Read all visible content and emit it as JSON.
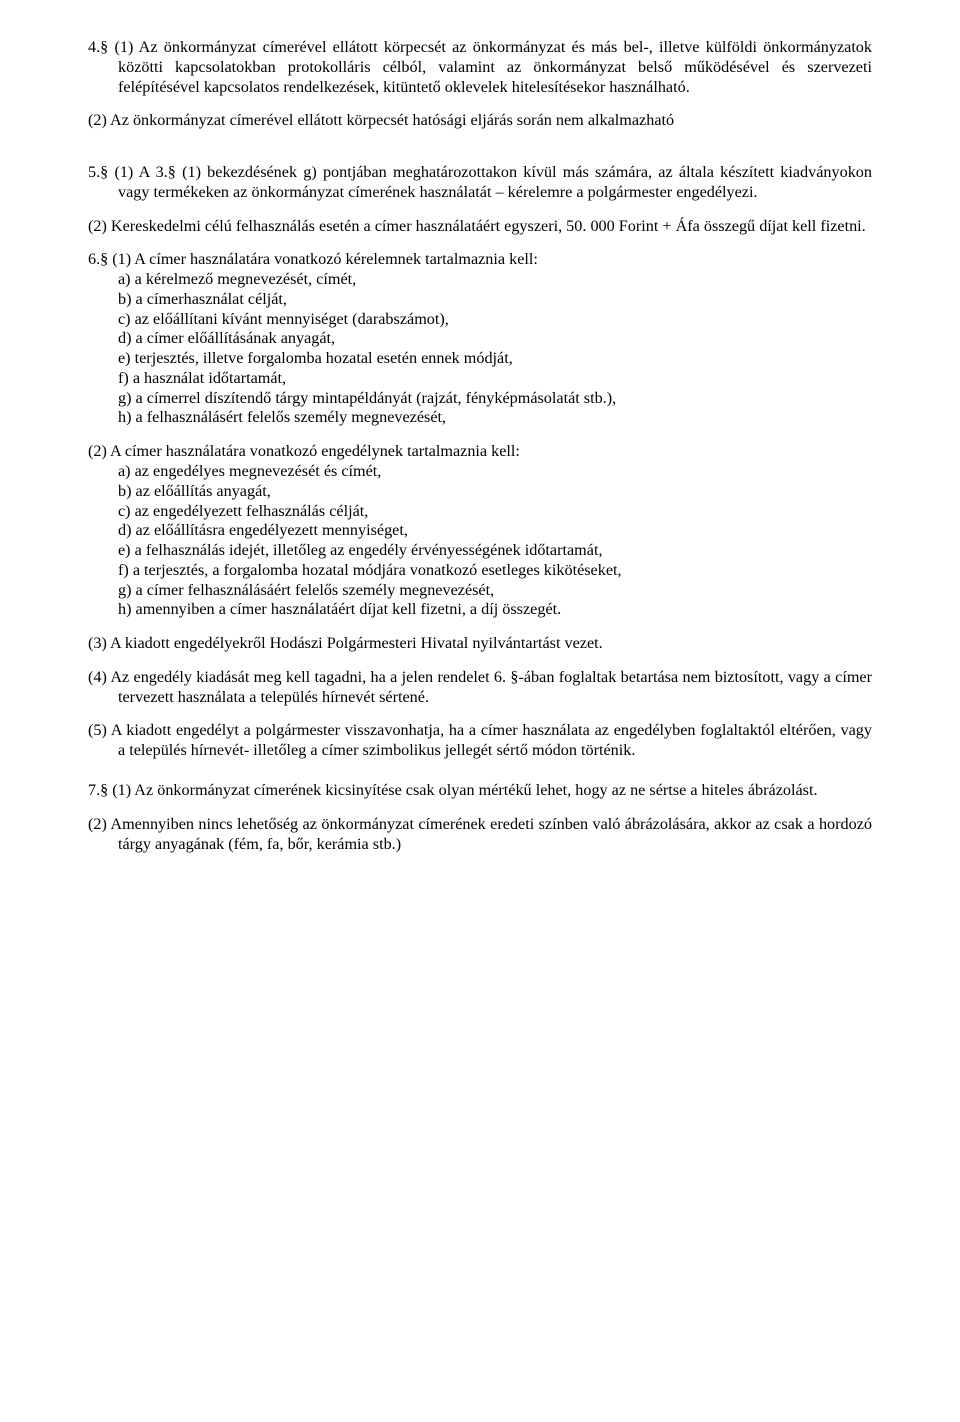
{
  "p4_1": "4.§ (1) Az önkormányzat címerével ellátott körpecsét az önkormányzat és más bel-, illetve külföldi önkormányzatok közötti kapcsolatokban protokolláris célból, valamint az önkormányzat belső működésével és szervezeti felépítésével kapcsolatos rendelkezések, kitüntető oklevelek hitelesítésekor használható.",
  "p4_2": "(2) Az önkormányzat címerével ellátott körpecsét hatósági eljárás során nem alkalmazható",
  "p5_1": "5.§ (1) A 3.§ (1) bekezdésének g) pontjában meghatározottakon kívül más számára, az általa készített kiadványokon vagy termékeken az önkormányzat címerének használatát – kérelemre a polgármester engedélyezi.",
  "p5_2": "(2) Kereskedelmi célú felhasználás esetén a címer használatáért egyszeri, 50. 000 Forint + Áfa összegű díjat kell fizetni.",
  "p6_1_lead": "6.§ (1) A címer használatára vonatkozó kérelemnek tartalmaznia kell:",
  "p6_1_items": {
    "a": "a) a kérelmező megnevezését, címét,",
    "b": "b) a címerhasználat célját,",
    "c": "c) az előállítani kívánt mennyiséget (darabszámot),",
    "d": "d) a címer előállításának anyagát,",
    "e": "e) terjesztés, illetve forgalomba hozatal esetén ennek módját,",
    "f": "f) a használat időtartamát,",
    "g": "g) a címerrel díszítendő tárgy mintapéldányát (rajzát, fényképmásolatát stb.),",
    "h": "h) a felhasználásért felelős személy megnevezését,"
  },
  "p6_2_lead": "(2) A címer használatára vonatkozó engedélynek tartalmaznia kell:",
  "p6_2_items": {
    "a": "a) az engedélyes megnevezését és címét,",
    "b": "b) az előállítás anyagát,",
    "c": "c) az engedélyezett felhasználás célját,",
    "d": "d) az előállításra engedélyezett mennyiséget,",
    "e": "e) a felhasználás idejét, illetőleg az engedély érvényességének időtartamát,",
    "f": "f) a terjesztés, a forgalomba hozatal módjára vonatkozó esetleges kikötéseket,",
    "g": "g) a címer felhasználásáért felelős személy megnevezését,",
    "h": "h) amennyiben a címer használatáért díjat kell fizetni, a díj összegét."
  },
  "p6_3": "(3) A kiadott engedélyekről Hodászi Polgármesteri Hivatal nyilvántartást vezet.",
  "p6_4": "(4) Az engedély kiadását meg kell tagadni, ha a jelen rendelet 6. §-ában foglaltak betartása nem biztosított, vagy a címer tervezett használata a település hírnevét sértené.",
  "p6_5": "(5) A kiadott engedélyt a polgármester visszavonhatja, ha a címer használata az engedélyben foglaltaktól eltérően, vagy a település hírnevét- illetőleg a címer szimbolikus jellegét sértő módon történik.",
  "p7_1": "7.§ (1) Az önkormányzat címerének kicsinyítése csak olyan mértékű lehet, hogy az ne sértse a hiteles ábrázolást.",
  "p7_2": "(2) Amennyiben nincs lehetőség az önkormányzat címerének eredeti színben való ábrázolására, akkor az csak a hordozó tárgy anyagának (fém, fa, bőr, kerámia stb.)"
}
